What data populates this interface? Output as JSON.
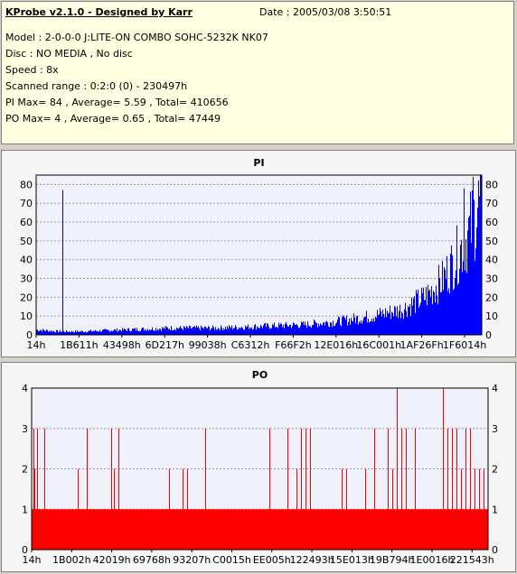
{
  "header": {
    "title": "KProbe v2.1.0 - Designed by Karr",
    "date": "Date : 2005/03/08 3:50:51",
    "lines": [
      "Model : 2-0-0-0 J:LITE-ON COMBO SOHC-5232K NK07",
      "Disc : NO MEDIA , No disc",
      "Speed : 8x",
      "Scanned range : 0:2:0 (0) - 230497h",
      "PI Max= 84 , Average= 5.59 , Total= 410656",
      "PO Max= 4 , Average= 0.65 , Total= 47449"
    ]
  },
  "colors": {
    "pi": "#0000ff",
    "po": "#ff0000",
    "plot_bg": "#f0f0fa",
    "info_bg": "#ffffe1"
  },
  "chart_data": [
    {
      "type": "bar",
      "title": "PI",
      "ylim": [
        0,
        85
      ],
      "yticks": [
        0,
        10,
        20,
        30,
        40,
        50,
        60,
        70,
        80
      ],
      "xticks": [
        "14h",
        "1B611h",
        "43498h",
        "6D217h",
        "99038h",
        "C6312h",
        "F66F2h",
        "12E016h",
        "16C001h",
        "1AF26Fh",
        "1F6014h"
      ],
      "grid": true,
      "envelope": [
        [
          0,
          3
        ],
        [
          0.05,
          2
        ],
        [
          0.1,
          2
        ],
        [
          0.2,
          3
        ],
        [
          0.3,
          4
        ],
        [
          0.4,
          4
        ],
        [
          0.5,
          5
        ],
        [
          0.6,
          6
        ],
        [
          0.68,
          8
        ],
        [
          0.75,
          11
        ],
        [
          0.82,
          15
        ],
        [
          0.87,
          22
        ],
        [
          0.91,
          32
        ],
        [
          0.94,
          45
        ],
        [
          0.97,
          60
        ],
        [
          0.99,
          75
        ],
        [
          1.0,
          80
        ]
      ],
      "spikes": [
        [
          0.059,
          77
        ],
        [
          0.98,
          84
        ],
        [
          0.96,
          78
        ]
      ]
    },
    {
      "type": "bar",
      "title": "PO",
      "ylim": [
        0,
        4
      ],
      "yticks": [
        0,
        1,
        2,
        3,
        4
      ],
      "xticks": [
        "14h",
        "1B002h",
        "42019h",
        "69768h",
        "93207h",
        "C0015h",
        "EE005h",
        "122493h",
        "15E013h",
        "19B794h",
        "1E0016h",
        "221543h"
      ],
      "grid": true,
      "baseline": 1,
      "spikes": [
        [
          0.003,
          3
        ],
        [
          0.006,
          2
        ],
        [
          0.012,
          3
        ],
        [
          0.028,
          3
        ],
        [
          0.1,
          2
        ],
        [
          0.12,
          3
        ],
        [
          0.175,
          3
        ],
        [
          0.18,
          2
        ],
        [
          0.19,
          3
        ],
        [
          0.3,
          2
        ],
        [
          0.33,
          2
        ],
        [
          0.34,
          2
        ],
        [
          0.38,
          3
        ],
        [
          0.52,
          3
        ],
        [
          0.56,
          3
        ],
        [
          0.58,
          2
        ],
        [
          0.59,
          3
        ],
        [
          0.6,
          3
        ],
        [
          0.61,
          3
        ],
        [
          0.68,
          2
        ],
        [
          0.69,
          2
        ],
        [
          0.73,
          2
        ],
        [
          0.75,
          3
        ],
        [
          0.78,
          3
        ],
        [
          0.79,
          2
        ],
        [
          0.8,
          4
        ],
        [
          0.81,
          3
        ],
        [
          0.82,
          3
        ],
        [
          0.84,
          3
        ],
        [
          0.9,
          4
        ],
        [
          0.91,
          3
        ],
        [
          0.92,
          3
        ],
        [
          0.93,
          3
        ],
        [
          0.94,
          2
        ],
        [
          0.95,
          3
        ],
        [
          0.96,
          3
        ],
        [
          0.97,
          2
        ],
        [
          0.98,
          2
        ],
        [
          0.99,
          2
        ]
      ]
    }
  ]
}
